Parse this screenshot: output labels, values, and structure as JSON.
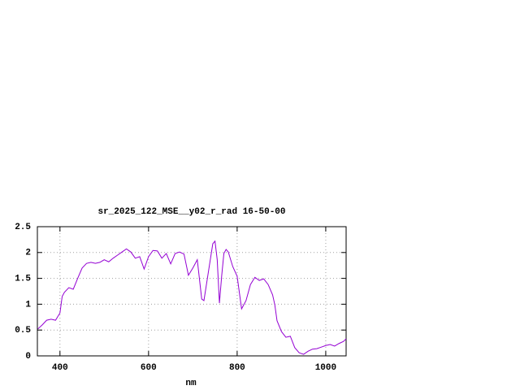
{
  "chart_data": {
    "type": "line",
    "title": "sr_2025_122_MSE__y02_r_rad 16-50-00",
    "x_label": "nm",
    "x": [
      350,
      360,
      370,
      380,
      390,
      400,
      405,
      410,
      420,
      430,
      440,
      450,
      460,
      470,
      480,
      490,
      500,
      510,
      520,
      530,
      540,
      550,
      560,
      570,
      580,
      590,
      600,
      610,
      620,
      630,
      640,
      650,
      660,
      670,
      680,
      690,
      700,
      710,
      720,
      725,
      735,
      745,
      750,
      755,
      760,
      765,
      770,
      775,
      780,
      790,
      800,
      810,
      820,
      830,
      840,
      850,
      860,
      870,
      880,
      885,
      890,
      900,
      910,
      920,
      930,
      940,
      950,
      960,
      970,
      980,
      990,
      1000,
      1010,
      1020,
      1030,
      1040,
      1046
    ],
    "values": [
      0.52,
      0.6,
      0.69,
      0.71,
      0.69,
      0.83,
      1.15,
      1.23,
      1.32,
      1.29,
      1.5,
      1.7,
      1.79,
      1.81,
      1.79,
      1.81,
      1.86,
      1.82,
      1.89,
      1.95,
      2.01,
      2.07,
      2.01,
      1.89,
      1.92,
      1.68,
      1.92,
      2.04,
      2.03,
      1.89,
      1.98,
      1.78,
      1.98,
      2.01,
      1.97,
      1.56,
      1.7,
      1.86,
      1.1,
      1.07,
      1.62,
      2.17,
      2.22,
      1.86,
      1.02,
      1.54,
      1.98,
      2.06,
      2.01,
      1.73,
      1.54,
      0.91,
      1.07,
      1.38,
      1.52,
      1.46,
      1.49,
      1.38,
      1.18,
      0.99,
      0.68,
      0.47,
      0.36,
      0.38,
      0.16,
      0.06,
      0.03,
      0.09,
      0.13,
      0.14,
      0.17,
      0.2,
      0.22,
      0.19,
      0.24,
      0.28,
      0.33
    ],
    "color": "#9400d3",
    "xlim": [
      349,
      1046
    ],
    "ylim": [
      0,
      2.5
    ],
    "xticks": [
      400,
      600,
      800,
      1000
    ],
    "yticks": [
      0,
      0.5,
      1,
      1.5,
      2,
      2.5
    ],
    "grid": true
  }
}
